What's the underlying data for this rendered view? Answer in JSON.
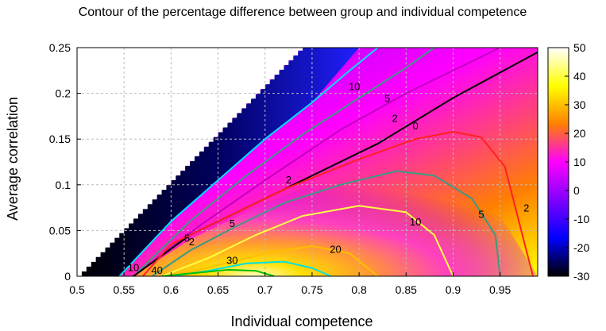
{
  "chart_data": {
    "type": "heatmap",
    "title": "Contour of the percentage difference between group and individual competence",
    "xlabel": "Individual competence",
    "ylabel": "Average correlation",
    "xlim": [
      0.5,
      0.99
    ],
    "ylim": [
      0,
      0.25
    ],
    "x_ticks": [
      0.5,
      0.55,
      0.6,
      0.65,
      0.7,
      0.75,
      0.8,
      0.85,
      0.9,
      0.95
    ],
    "x_tick_labels": [
      "0.5",
      "0.55",
      "0.6",
      "0.65",
      "0.7",
      "0.75",
      "0.8",
      "0.85",
      "0.9",
      "0.95"
    ],
    "y_ticks": [
      0,
      0.05,
      0.1,
      0.15,
      0.2,
      0.25
    ],
    "y_tick_labels": [
      "0",
      "0.05",
      "0.1",
      "0.15",
      "0.2",
      "0.25"
    ],
    "grid": true,
    "colorbar": {
      "range": [
        -30,
        50
      ],
      "ticks": [
        -30,
        -20,
        -10,
        0,
        10,
        20,
        30,
        40,
        50
      ],
      "tick_labels": [
        "-30",
        "-20",
        "-10",
        "0",
        "10",
        "20",
        "30",
        "40",
        "50"
      ],
      "colors": [
        "#000000",
        "#0000ff",
        "#7f00ff",
        "#ff00ff",
        "#ff8000",
        "#ffff00",
        "#ffffff"
      ]
    },
    "contours": [
      {
        "level": 10,
        "label": "10",
        "color": "#00dfff",
        "points": [
          [
            0.545,
            0.0
          ],
          [
            0.6,
            0.06
          ],
          [
            0.65,
            0.105
          ],
          [
            0.7,
            0.15
          ],
          [
            0.75,
            0.19
          ],
          [
            0.79,
            0.225
          ],
          [
            0.82,
            0.25
          ]
        ]
      },
      {
        "level": 5,
        "label": "5",
        "color": "#3c9a82",
        "points": [
          [
            0.56,
            0.0
          ],
          [
            0.62,
            0.06
          ],
          [
            0.68,
            0.11
          ],
          [
            0.74,
            0.155
          ],
          [
            0.8,
            0.195
          ],
          [
            0.85,
            0.228
          ],
          [
            0.88,
            0.25
          ]
        ]
      },
      {
        "level": 2,
        "label": "2",
        "color": "#c000c0",
        "points": [
          [
            0.56,
            0.0
          ],
          [
            0.63,
            0.055
          ],
          [
            0.7,
            0.105
          ],
          [
            0.78,
            0.16
          ],
          [
            0.85,
            0.2
          ],
          [
            0.91,
            0.23
          ],
          [
            0.95,
            0.25
          ]
        ]
      },
      {
        "level": 0,
        "label": "0",
        "color": "#000000",
        "points": [
          [
            0.56,
            0.0
          ],
          [
            0.62,
            0.045
          ],
          [
            0.68,
            0.075
          ],
          [
            0.75,
            0.11
          ],
          [
            0.82,
            0.145
          ],
          [
            0.9,
            0.195
          ],
          [
            0.99,
            0.245
          ]
        ]
      },
      {
        "level": 2,
        "label": "2",
        "color": "#ff2020",
        "points": [
          [
            0.57,
            0.0
          ],
          [
            0.6,
            0.035
          ],
          [
            0.65,
            0.06
          ],
          [
            0.72,
            0.095
          ],
          [
            0.8,
            0.128
          ],
          [
            0.86,
            0.15
          ],
          [
            0.9,
            0.158
          ],
          [
            0.93,
            0.152
          ],
          [
            0.955,
            0.12
          ],
          [
            0.97,
            0.06
          ],
          [
            0.985,
            0.0
          ]
        ]
      },
      {
        "level": 5,
        "label": "5",
        "color": "#3c9a82",
        "points": [
          [
            0.58,
            0.0
          ],
          [
            0.62,
            0.028
          ],
          [
            0.67,
            0.055
          ],
          [
            0.72,
            0.08
          ],
          [
            0.78,
            0.1
          ],
          [
            0.84,
            0.115
          ],
          [
            0.88,
            0.11
          ],
          [
            0.92,
            0.085
          ],
          [
            0.945,
            0.045
          ],
          [
            0.95,
            0.0
          ]
        ]
      },
      {
        "level": 10,
        "label": "10",
        "color": "#ffff40",
        "points": [
          [
            0.59,
            0.0
          ],
          [
            0.64,
            0.02
          ],
          [
            0.69,
            0.045
          ],
          [
            0.74,
            0.066
          ],
          [
            0.8,
            0.077
          ],
          [
            0.85,
            0.07
          ],
          [
            0.88,
            0.045
          ],
          [
            0.9,
            0.0
          ]
        ]
      },
      {
        "level": 20,
        "label": "20",
        "color": "#ffbf00",
        "points": [
          [
            0.6,
            0.0
          ],
          [
            0.65,
            0.012
          ],
          [
            0.7,
            0.025
          ],
          [
            0.75,
            0.033
          ],
          [
            0.79,
            0.025
          ],
          [
            0.82,
            0.0
          ]
        ]
      },
      {
        "level": 30,
        "label": "30",
        "color": "#00e0e0",
        "points": [
          [
            0.6,
            0.0
          ],
          [
            0.64,
            0.006
          ],
          [
            0.68,
            0.014
          ],
          [
            0.72,
            0.016
          ],
          [
            0.75,
            0.009
          ],
          [
            0.77,
            0.0
          ]
        ]
      },
      {
        "level": 40,
        "label": "40",
        "color": "#00c000",
        "points": [
          [
            0.59,
            0.0
          ],
          [
            0.62,
            0.003
          ],
          [
            0.66,
            0.007
          ],
          [
            0.69,
            0.006
          ],
          [
            0.71,
            0.0
          ]
        ]
      }
    ],
    "contour_labels": [
      {
        "text": "10",
        "x": 0.795,
        "y": 0.208
      },
      {
        "text": "5",
        "x": 0.83,
        "y": 0.195
      },
      {
        "text": "2",
        "x": 0.838,
        "y": 0.173
      },
      {
        "text": "0",
        "x": 0.86,
        "y": 0.165
      },
      {
        "text": "2",
        "x": 0.725,
        "y": 0.106
      },
      {
        "text": "5",
        "x": 0.665,
        "y": 0.058
      },
      {
        "text": "10",
        "x": 0.86,
        "y": 0.06
      },
      {
        "text": "5",
        "x": 0.93,
        "y": 0.068
      },
      {
        "text": "2",
        "x": 0.978,
        "y": 0.075
      },
      {
        "text": "20",
        "x": 0.775,
        "y": 0.03
      },
      {
        "text": "30",
        "x": 0.665,
        "y": 0.018
      },
      {
        "text": "40",
        "x": 0.585,
        "y": 0.007
      },
      {
        "text": "10",
        "x": 0.56,
        "y": 0.01
      },
      {
        "text": "5",
        "x": 0.617,
        "y": 0.042
      },
      {
        "text": "2",
        "x": 0.622,
        "y": 0.038
      }
    ]
  }
}
